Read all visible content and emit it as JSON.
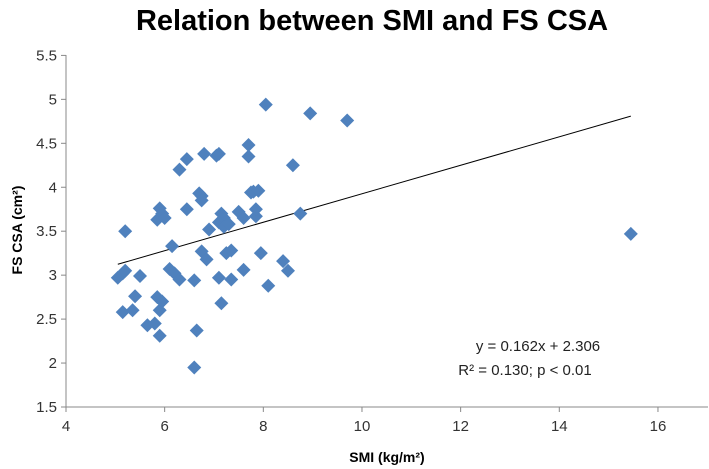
{
  "chart_data": {
    "type": "scatter",
    "title": "Relation between SMI and FS CSA",
    "xlabel": "SMI (kg/m²)",
    "ylabel": "FS CSA (cm²)",
    "xlim": [
      4,
      17
    ],
    "ylim": [
      1.5,
      5.5
    ],
    "xticks": [
      "4",
      "6",
      "8",
      "10",
      "12",
      "14",
      "16"
    ],
    "yticks": [
      "1.5",
      "2",
      "2.5",
      "3",
      "3.5",
      "4",
      "4.5",
      "5",
      "5.5"
    ],
    "marker_color": "#4F81BD",
    "grid": false,
    "points": [
      [
        5.05,
        2.97
      ],
      [
        5.15,
        3.02
      ],
      [
        5.2,
        3.05
      ],
      [
        5.2,
        3.5
      ],
      [
        5.15,
        2.58
      ],
      [
        5.35,
        2.6
      ],
      [
        5.4,
        2.76
      ],
      [
        5.5,
        2.99
      ],
      [
        5.65,
        2.43
      ],
      [
        5.8,
        2.45
      ],
      [
        5.85,
        2.75
      ],
      [
        5.9,
        2.6
      ],
      [
        5.9,
        2.31
      ],
      [
        5.95,
        2.7
      ],
      [
        5.85,
        3.63
      ],
      [
        5.9,
        3.76
      ],
      [
        5.95,
        3.7
      ],
      [
        6.0,
        3.65
      ],
      [
        6.15,
        3.33
      ],
      [
        6.1,
        3.07
      ],
      [
        6.2,
        3.02
      ],
      [
        6.3,
        2.95
      ],
      [
        6.3,
        4.2
      ],
      [
        6.45,
        4.32
      ],
      [
        6.45,
        3.75
      ],
      [
        6.6,
        2.94
      ],
      [
        6.65,
        2.37
      ],
      [
        6.6,
        1.95
      ],
      [
        6.7,
        3.93
      ],
      [
        6.75,
        3.9
      ],
      [
        6.75,
        3.85
      ],
      [
        6.75,
        3.27
      ],
      [
        6.85,
        3.18
      ],
      [
        6.8,
        4.38
      ],
      [
        6.9,
        3.52
      ],
      [
        7.05,
        4.36
      ],
      [
        7.1,
        4.38
      ],
      [
        7.1,
        3.6
      ],
      [
        7.15,
        3.7
      ],
      [
        7.2,
        3.65
      ],
      [
        7.2,
        3.55
      ],
      [
        7.3,
        3.58
      ],
      [
        7.25,
        3.25
      ],
      [
        7.35,
        3.28
      ],
      [
        7.1,
        2.97
      ],
      [
        7.15,
        2.68
      ],
      [
        7.35,
        2.95
      ],
      [
        7.5,
        3.72
      ],
      [
        7.6,
        3.65
      ],
      [
        7.6,
        3.06
      ],
      [
        7.7,
        4.48
      ],
      [
        7.7,
        4.35
      ],
      [
        7.75,
        3.94
      ],
      [
        7.8,
        3.95
      ],
      [
        7.85,
        3.67
      ],
      [
        7.85,
        3.75
      ],
      [
        7.9,
        3.96
      ],
      [
        7.95,
        3.25
      ],
      [
        8.05,
        4.94
      ],
      [
        8.1,
        2.88
      ],
      [
        8.4,
        3.16
      ],
      [
        8.5,
        3.05
      ],
      [
        8.6,
        4.25
      ],
      [
        8.75,
        3.7
      ],
      [
        8.95,
        4.84
      ],
      [
        9.7,
        4.76
      ],
      [
        15.45,
        3.47
      ]
    ],
    "trendline": {
      "slope": 0.162,
      "intercept": 2.306,
      "x_range": [
        5.05,
        15.45
      ]
    },
    "annotations": [
      "y = 0.162x + 2.306",
      "R² = 0.130; p < 0.01"
    ]
  }
}
